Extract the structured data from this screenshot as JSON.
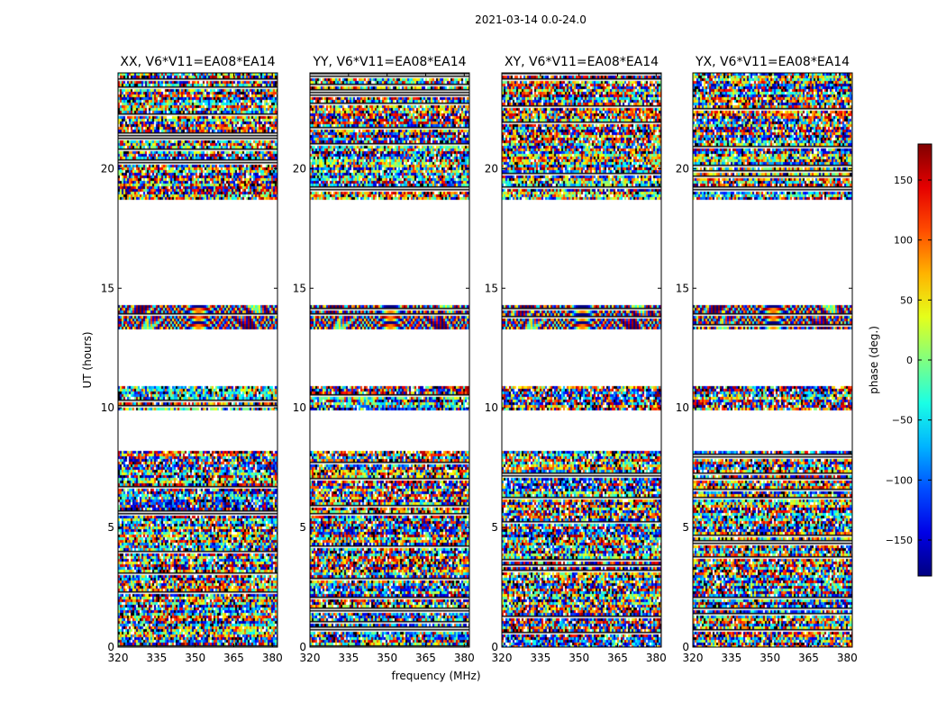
{
  "figure_title": "2021-03-14 0.0-24.0",
  "chart_data": [
    {
      "type": "heatmap",
      "title": "XX, V6*V11=EA08*EA14",
      "xlabel": "frequency (MHz)",
      "ylabel": "UT (hours)",
      "xlim": [
        320,
        382
      ],
      "ylim": [
        0,
        24
      ],
      "xticks": [
        "320",
        "335",
        "350",
        "365",
        "380"
      ],
      "yticks": [
        "0",
        "5",
        "10",
        "15",
        "20"
      ],
      "empty_hours": [
        [
          8.3,
          9.9
        ],
        [
          11.0,
          13.3
        ],
        [
          14.4,
          18.7
        ]
      ],
      "style": "noisy"
    },
    {
      "type": "heatmap",
      "title": "YY, V6*V11=EA08*EA14",
      "xlabel": "frequency (MHz)",
      "ylabel": "UT (hours)",
      "xlim": [
        320,
        382
      ],
      "ylim": [
        0,
        24
      ],
      "xticks": [
        "320",
        "335",
        "350",
        "365",
        "380"
      ],
      "yticks": [
        "0",
        "5",
        "10",
        "15",
        "20"
      ],
      "empty_hours": [
        [
          8.3,
          9.9
        ],
        [
          11.0,
          13.3
        ],
        [
          14.4,
          18.7
        ]
      ],
      "style": "noisy"
    },
    {
      "type": "heatmap",
      "title": "XY, V6*V11=EA08*EA14",
      "xlabel": "frequency (MHz)",
      "ylabel": "UT (hours)",
      "xlim": [
        320,
        382
      ],
      "ylim": [
        0,
        24
      ],
      "xticks": [
        "320",
        "335",
        "350",
        "365",
        "380"
      ],
      "yticks": [
        "0",
        "5",
        "10",
        "15",
        "20"
      ],
      "empty_hours": [
        [
          8.3,
          9.9
        ],
        [
          11.0,
          13.3
        ],
        [
          14.4,
          18.7
        ]
      ],
      "style": "noisy"
    },
    {
      "type": "heatmap",
      "title": "YX, V6*V11=EA08*EA14",
      "xlabel": "frequency (MHz)",
      "ylabel": "UT (hours)",
      "xlim": [
        320,
        382
      ],
      "ylim": [
        0,
        24
      ],
      "xticks": [
        "320",
        "335",
        "350",
        "365",
        "380"
      ],
      "yticks": [
        "0",
        "5",
        "10",
        "15",
        "20"
      ],
      "empty_hours": [
        [
          8.3,
          9.9
        ],
        [
          11.0,
          13.3
        ],
        [
          14.4,
          18.7
        ]
      ],
      "style": "noisy"
    }
  ],
  "colorbar": {
    "label": "phase (deg.)",
    "range": [
      -180,
      180
    ],
    "ticks": [
      150,
      100,
      50,
      0,
      -50,
      -100,
      -150
    ],
    "tick_labels": [
      "150",
      "100",
      "50",
      "0",
      "−50",
      "−100",
      "−150"
    ],
    "colormap": "jet"
  }
}
